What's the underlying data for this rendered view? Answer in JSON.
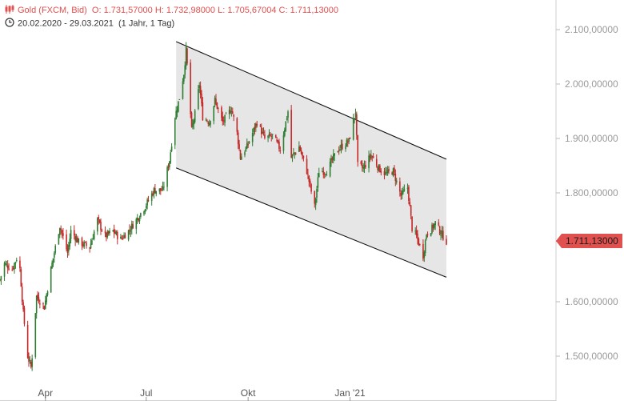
{
  "header": {
    "instrument": "Gold (FXCM, Bid)",
    "ohlc": "O: 1.731,57000  H: 1.732,98000  L: 1.705,67004  C: 1.711,13000",
    "range": "20.02.2020 - 29.03.2021",
    "interval": "(1 Jahr, 1 Tag)"
  },
  "last_price_label": "1.711,13000",
  "colors": {
    "up": "#2e7d32",
    "down": "#c62828",
    "channel_fill": "#e6e6e6",
    "line": "#111111",
    "accent": "#e0504f"
  },
  "chart_data": {
    "type": "candlestick",
    "x_ticks": [
      "Apr",
      "Jul",
      "Okt",
      "Jan '21"
    ],
    "y_ticks": [
      "2.100,00000",
      "2.000,00000",
      "1.900,00000",
      "1.800,00000",
      "1.600,00000",
      "1.500,00000"
    ],
    "y_tick_values": [
      2100,
      2000,
      1900,
      1800,
      1600,
      1500
    ],
    "ylim": [
      1450,
      2180
    ],
    "xlim": [
      "2020-02-20",
      "2021-03-29"
    ],
    "last_close": 1711.13,
    "channel": {
      "upper": [
        [
          "2020-07-28",
          2078
        ],
        [
          "2021-03-29",
          1862
        ]
      ],
      "lower": [
        [
          "2020-07-28",
          1846
        ],
        [
          "2021-03-29",
          1645
        ]
      ]
    },
    "close_path": [
      [
        "2020-02-20",
        1640
      ],
      [
        "2020-02-24",
        1670
      ],
      [
        "2020-03-02",
        1660
      ],
      [
        "2020-03-06",
        1680
      ],
      [
        "2020-03-09",
        1660
      ],
      [
        "2020-03-12",
        1580
      ],
      [
        "2020-03-16",
        1500
      ],
      [
        "2020-03-19",
        1480
      ],
      [
        "2020-03-20",
        1500
      ],
      [
        "2020-03-24",
        1610
      ],
      [
        "2020-03-31",
        1590
      ],
      [
        "2020-04-06",
        1660
      ],
      [
        "2020-04-10",
        1700
      ],
      [
        "2020-04-14",
        1740
      ],
      [
        "2020-04-21",
        1690
      ],
      [
        "2020-04-24",
        1730
      ],
      [
        "2020-05-01",
        1710
      ],
      [
        "2020-05-11",
        1700
      ],
      [
        "2020-05-18",
        1750
      ],
      [
        "2020-05-25",
        1720
      ],
      [
        "2020-06-01",
        1730
      ],
      [
        "2020-06-08",
        1715
      ],
      [
        "2020-06-15",
        1730
      ],
      [
        "2020-06-22",
        1750
      ],
      [
        "2020-06-30",
        1775
      ],
      [
        "2020-07-08",
        1805
      ],
      [
        "2020-07-16",
        1805
      ],
      [
        "2020-07-22",
        1860
      ],
      [
        "2020-07-27",
        1940
      ],
      [
        "2020-07-31",
        1975
      ],
      [
        "2020-08-04",
        2020
      ],
      [
        "2020-08-06",
        2062
      ],
      [
        "2020-08-07",
        2035
      ],
      [
        "2020-08-11",
        1915
      ],
      [
        "2020-08-14",
        1945
      ],
      [
        "2020-08-18",
        2000
      ],
      [
        "2020-08-21",
        1940
      ],
      [
        "2020-08-27",
        1930
      ],
      [
        "2020-09-01",
        1970
      ],
      [
        "2020-09-08",
        1930
      ],
      [
        "2020-09-16",
        1955
      ],
      [
        "2020-09-21",
        1910
      ],
      [
        "2020-09-24",
        1865
      ],
      [
        "2020-09-30",
        1885
      ],
      [
        "2020-10-09",
        1930
      ],
      [
        "2020-10-16",
        1900
      ],
      [
        "2020-10-23",
        1905
      ],
      [
        "2020-10-30",
        1880
      ],
      [
        "2020-11-06",
        1950
      ],
      [
        "2020-11-09",
        1865
      ],
      [
        "2020-11-16",
        1885
      ],
      [
        "2020-11-23",
        1840
      ],
      [
        "2020-11-30",
        1775
      ],
      [
        "2020-12-04",
        1840
      ],
      [
        "2020-12-11",
        1840
      ],
      [
        "2020-12-16",
        1860
      ],
      [
        "2020-12-21",
        1880
      ],
      [
        "2020-12-31",
        1895
      ],
      [
        "2021-01-06",
        1950
      ],
      [
        "2021-01-08",
        1850
      ],
      [
        "2021-01-13",
        1845
      ],
      [
        "2021-01-20",
        1870
      ],
      [
        "2021-01-27",
        1845
      ],
      [
        "2021-02-02",
        1835
      ],
      [
        "2021-02-09",
        1840
      ],
      [
        "2021-02-16",
        1795
      ],
      [
        "2021-02-22",
        1810
      ],
      [
        "2021-02-26",
        1735
      ],
      [
        "2021-03-02",
        1720
      ],
      [
        "2021-03-08",
        1685
      ],
      [
        "2021-03-11",
        1725
      ],
      [
        "2021-03-16",
        1735
      ],
      [
        "2021-03-19",
        1745
      ],
      [
        "2021-03-23",
        1730
      ],
      [
        "2021-03-29",
        1711
      ]
    ]
  }
}
